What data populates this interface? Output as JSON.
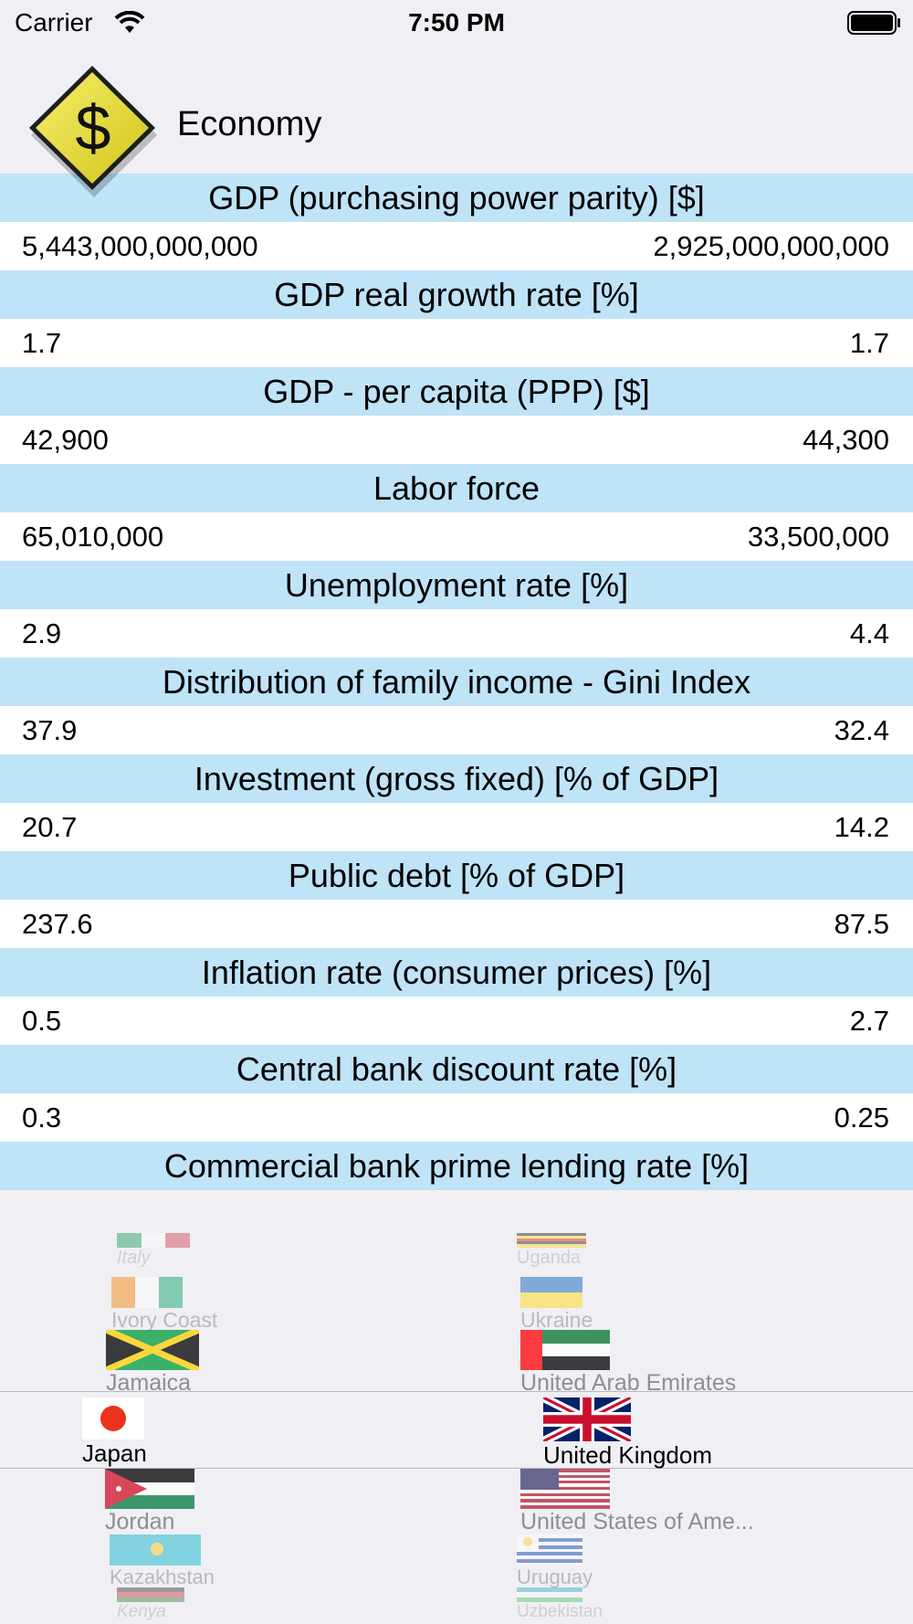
{
  "status": {
    "carrier": "Carrier",
    "time": "7:50 PM"
  },
  "header": {
    "title": "Economy",
    "icon": "dollar-diamond-icon"
  },
  "rows": [
    {
      "label": "GDP (purchasing power parity) [$]",
      "left": "5,443,000,000,000",
      "right": "2,925,000,000,000"
    },
    {
      "label": "GDP real growth rate [%]",
      "left": "1.7",
      "right": "1.7"
    },
    {
      "label": "GDP - per capita (PPP) [$]",
      "left": "42,900",
      "right": "44,300"
    },
    {
      "label": "Labor force",
      "left": "65,010,000",
      "right": "33,500,000"
    },
    {
      "label": "Unemployment rate [%]",
      "left": "2.9",
      "right": "4.4"
    },
    {
      "label": "Distribution of family income - Gini Index",
      "left": "37.9",
      "right": "32.4"
    },
    {
      "label": "Investment (gross fixed) [% of GDP]",
      "left": "20.7",
      "right": "14.2"
    },
    {
      "label": "Public debt [% of GDP]",
      "left": "237.6",
      "right": "87.5"
    },
    {
      "label": "Inflation rate (consumer prices) [%]",
      "left": "0.5",
      "right": "2.7"
    },
    {
      "label": "Central bank discount rate [%]",
      "left": "0.3",
      "right": "0.25"
    },
    {
      "label": "Commercial bank prime lending rate [%]"
    }
  ],
  "picker_left": [
    "Italy",
    "Ivory Coast",
    "Jamaica",
    "Japan",
    "Jordan",
    "Kazakhstan",
    "Kenya"
  ],
  "picker_right": [
    "Uganda",
    "Ukraine",
    "United Arab Emirates",
    "United Kingdom",
    "United States of Ame...",
    "Uruguay",
    "Uzbekistan"
  ],
  "selected": {
    "left": "Japan",
    "right": "United Kingdom"
  },
  "colors": {
    "header_row": "#bfe3f7",
    "background": "#efeff4",
    "value_row": "#ffffff"
  }
}
